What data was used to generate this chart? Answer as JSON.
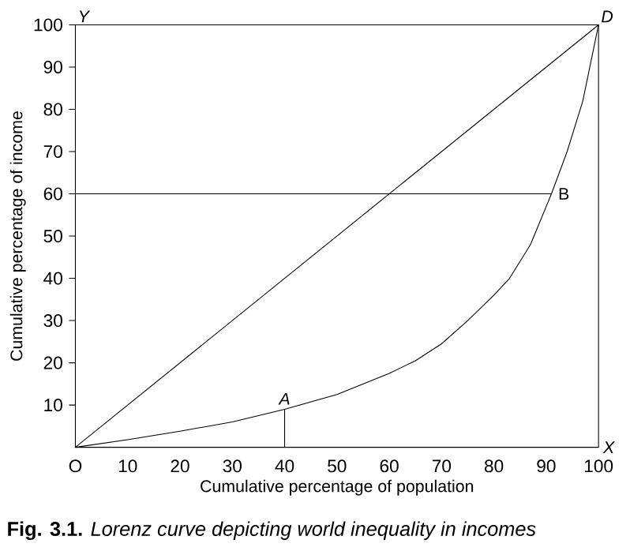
{
  "chart_data": {
    "type": "line",
    "xlabel": "Cumulative percentage of population",
    "ylabel": "Cumulative percentage of income",
    "xlim": [
      0,
      100
    ],
    "ylim": [
      0,
      100
    ],
    "xticks": [
      {
        "value": 0,
        "label": "O"
      },
      10,
      20,
      30,
      40,
      50,
      60,
      70,
      80,
      90,
      100
    ],
    "yticks": [
      10,
      20,
      30,
      40,
      50,
      60,
      70,
      80,
      90,
      100
    ],
    "series": [
      {
        "color": "#000000",
        "x": [
          0,
          100
        ],
        "values": [
          0,
          100
        ]
      },
      {
        "color": "#000000",
        "x": [
          0,
          91
        ],
        "values": [
          60,
          60
        ]
      },
      {
        "color": "#000000",
        "x": [
          0,
          10,
          20,
          30,
          40,
          50,
          60,
          65,
          70,
          75,
          80,
          83,
          87,
          91,
          94,
          97,
          100
        ],
        "values": [
          0,
          1.8,
          3.8,
          6,
          9,
          12.5,
          17.5,
          20.5,
          24.5,
          30,
          36,
          40,
          48,
          60,
          70,
          82,
          100
        ]
      }
    ],
    "annotations": [
      {
        "text": "A",
        "x": 40,
        "y": 9
      },
      {
        "text": "B",
        "x": 91,
        "y": 60
      },
      {
        "text": "D",
        "x": 100,
        "y": 100
      },
      "Y",
      "X",
      "**Fig. 3.1.** *Lorenz curve depicting world inequality in incomes*"
    ],
    "line_style": "solid"
  }
}
